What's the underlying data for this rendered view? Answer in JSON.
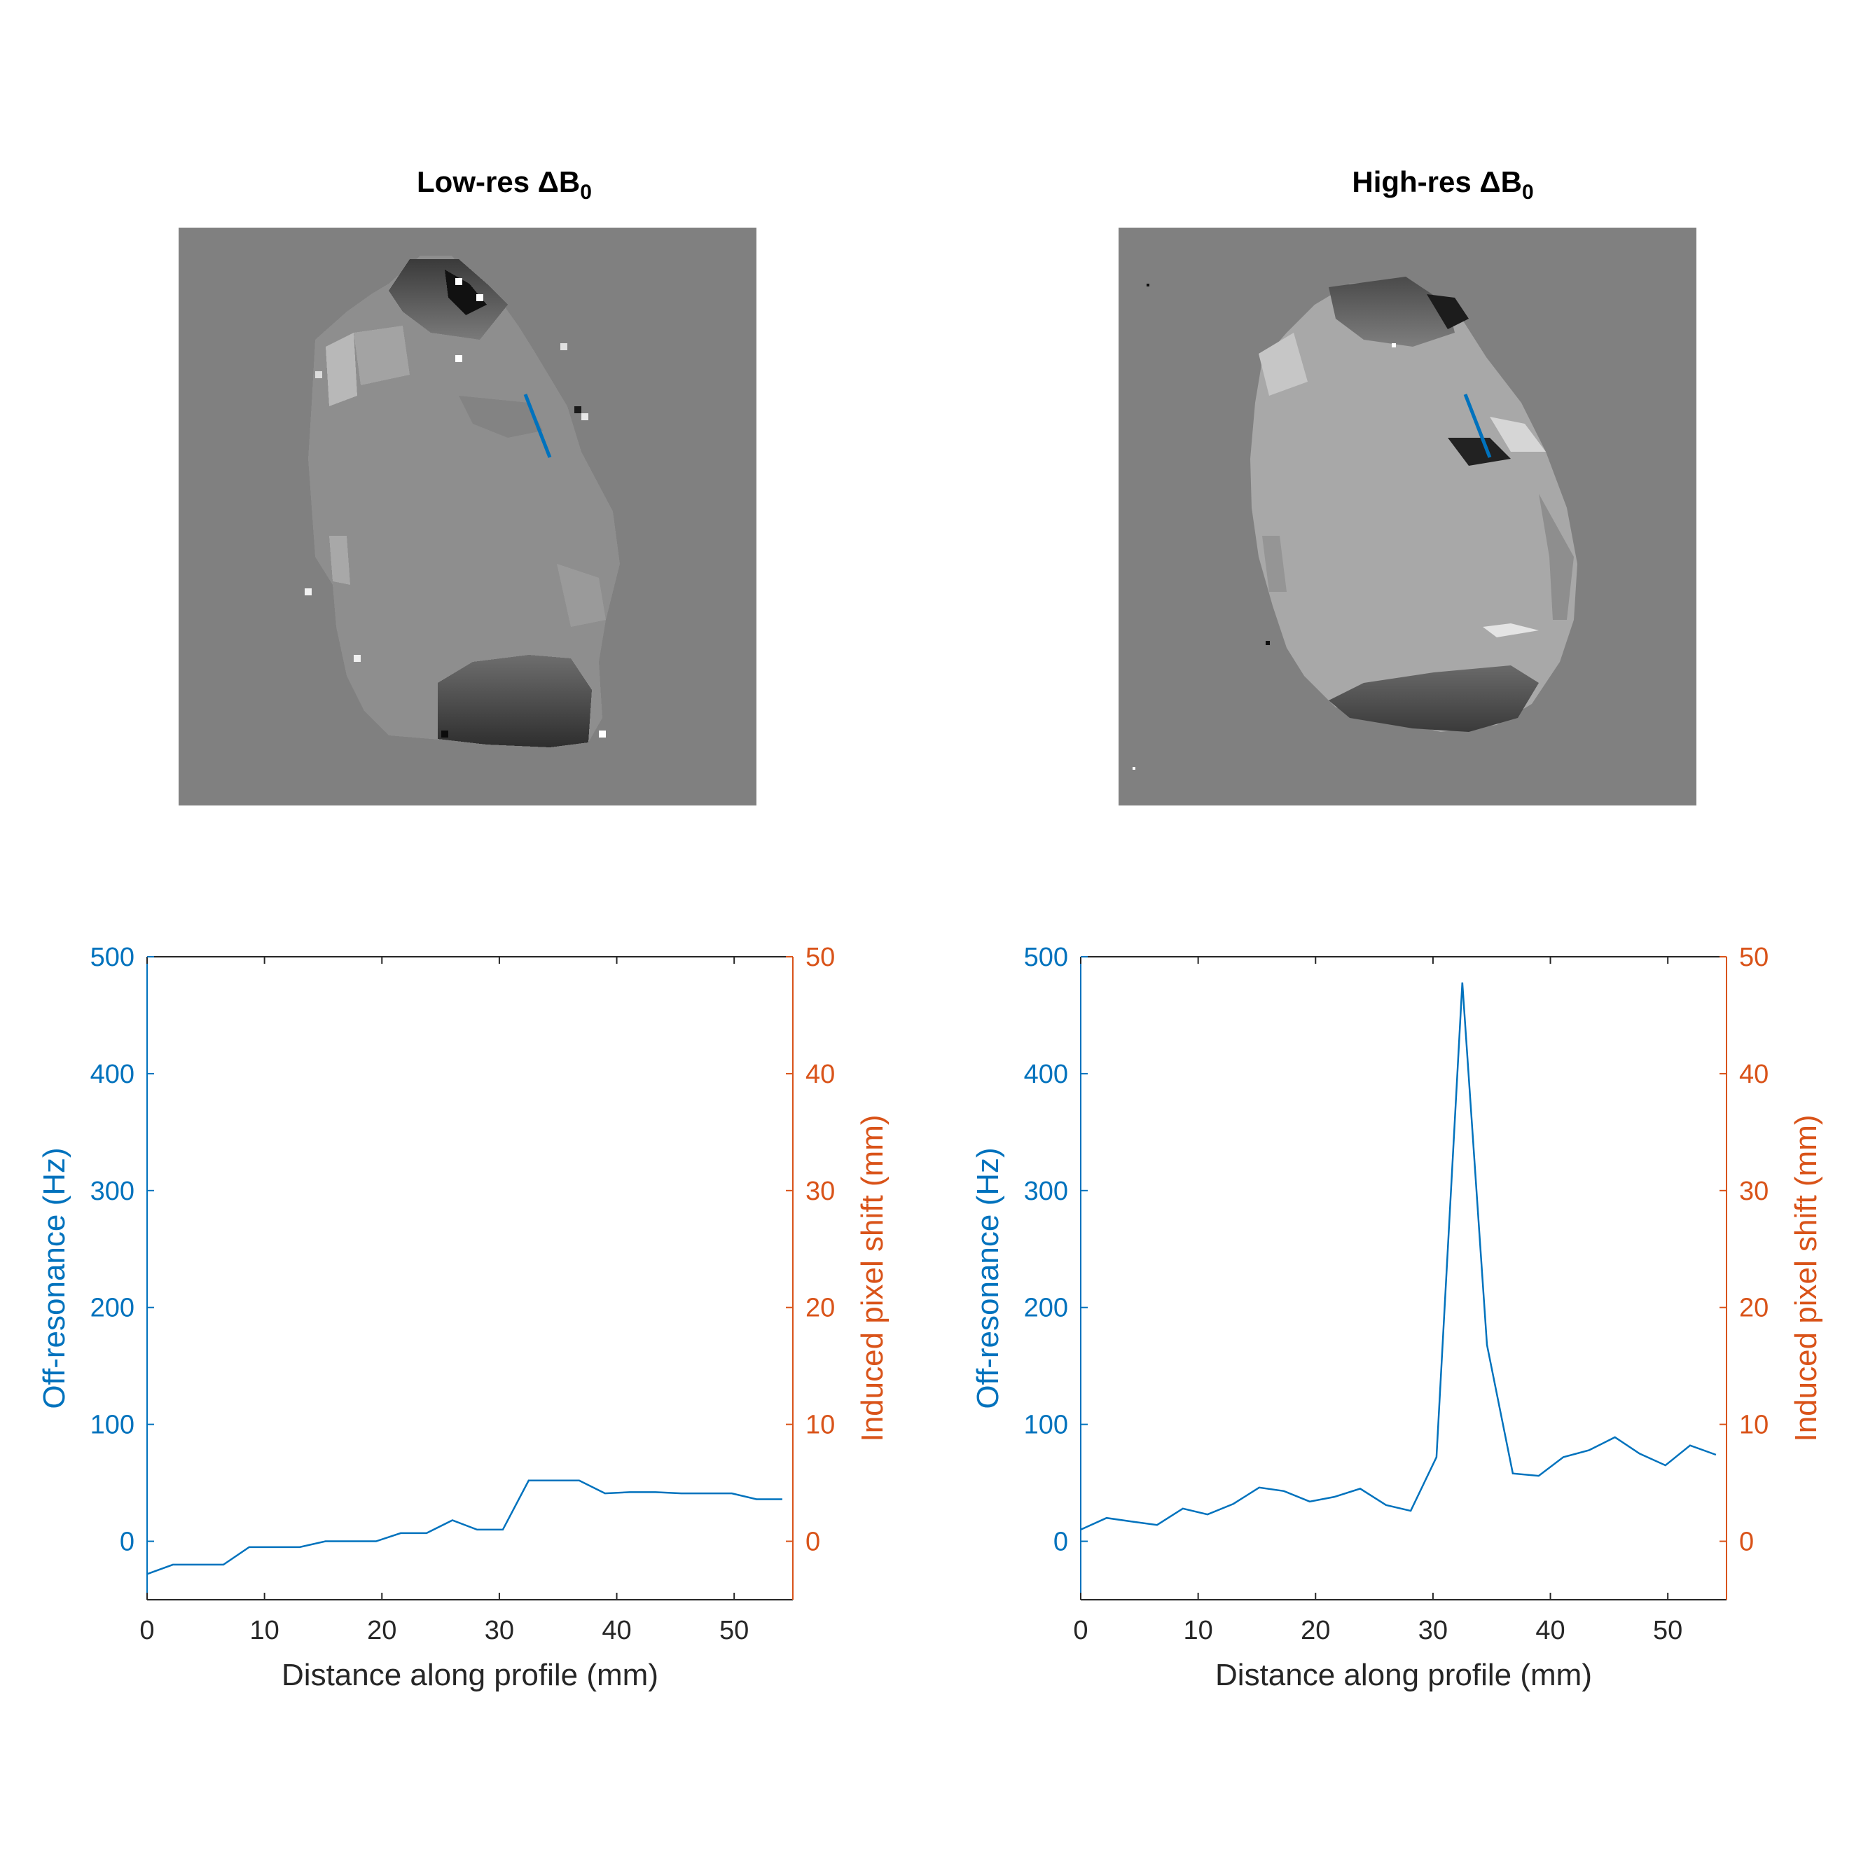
{
  "panels": {
    "low": {
      "title_prefix": "Low-res ",
      "title_delta": "ΔB",
      "title_sub": "0"
    },
    "high": {
      "title_prefix": "High-res ",
      "title_delta": "ΔB",
      "title_sub": "0"
    }
  },
  "colors": {
    "left_axis": "#0072BD",
    "right_axis": "#D95319",
    "line": "#0072BD",
    "map_background": "#808080"
  },
  "chart_data": [
    {
      "type": "line",
      "name": "low-res-profile",
      "xlabel": "Distance along profile (mm)",
      "ylabel": "Off-resonance (Hz)",
      "y2label": "Induced pixel shift (mm)",
      "xlim": [
        0,
        55
      ],
      "ylim": [
        -50,
        500
      ],
      "y2lim": [
        -5,
        50
      ],
      "xticks": [
        "0",
        "10",
        "20",
        "30",
        "40",
        "50"
      ],
      "yticks": [
        "0",
        "100",
        "200",
        "300",
        "400",
        "500"
      ],
      "y2ticks": [
        "0",
        "10",
        "20",
        "30",
        "40",
        "50"
      ],
      "x": [
        0,
        2.2,
        4.3,
        6.5,
        8.7,
        10.8,
        13,
        15.2,
        17.3,
        19.5,
        21.6,
        23.8,
        26,
        28.1,
        30.3,
        32.5,
        34.6,
        36.8,
        39,
        41.1,
        43.3,
        45.5,
        47.6,
        49.8,
        51.9,
        54.1
      ],
      "y": [
        -28,
        -20,
        -20,
        -20,
        -5,
        -5,
        -5,
        0,
        0,
        0,
        7,
        7,
        18,
        10,
        10,
        52,
        52,
        52,
        41,
        42,
        42,
        41,
        41,
        41,
        36,
        36
      ]
    },
    {
      "type": "line",
      "name": "high-res-profile",
      "xlabel": "Distance along profile (mm)",
      "ylabel": "Off-resonance (Hz)",
      "y2label": "Induced pixel shift (mm)",
      "xlim": [
        0,
        55
      ],
      "ylim": [
        -50,
        500
      ],
      "y2lim": [
        -5,
        50
      ],
      "xticks": [
        "0",
        "10",
        "20",
        "30",
        "40",
        "50"
      ],
      "yticks": [
        "0",
        "100",
        "200",
        "300",
        "400",
        "500"
      ],
      "y2ticks": [
        "0",
        "10",
        "20",
        "30",
        "40",
        "50"
      ],
      "x": [
        0,
        2.2,
        4.3,
        6.5,
        8.7,
        10.8,
        13,
        15.2,
        17.3,
        19.5,
        21.6,
        23.8,
        26,
        28.1,
        30.3,
        32.5,
        34.6,
        36.8,
        39,
        41.1,
        43.3,
        45.5,
        47.6,
        49.8,
        51.9,
        54.1
      ],
      "y": [
        10,
        20,
        17,
        14,
        28,
        23,
        32,
        46,
        43,
        34,
        38,
        45,
        31,
        26,
        72,
        478,
        168,
        58,
        56,
        72,
        78,
        89,
        75,
        65,
        82,
        74
      ]
    }
  ]
}
